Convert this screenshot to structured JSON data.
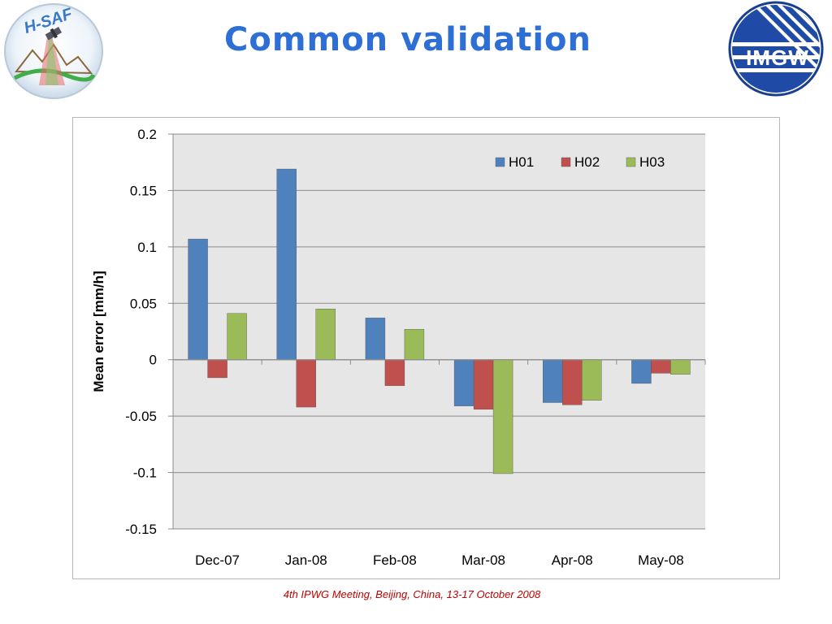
{
  "slide": {
    "title": "Common validation",
    "footer": "4th IPWG Meeting, Beijing, China, 13-17 October 2008",
    "logo_left_text": "H-SAF",
    "logo_right_text": "IMGW"
  },
  "colors": {
    "title": "#2d6fd4",
    "footer": "#c00000",
    "plot_background": "#e6e6e6"
  },
  "chart_data": {
    "type": "bar",
    "title": "",
    "xlabel": "",
    "ylabel": "Mean error [mm/h]",
    "categories": [
      "Dec-07",
      "Jan-08",
      "Feb-08",
      "Mar-08",
      "Apr-08",
      "May-08"
    ],
    "series": [
      {
        "name": "H01",
        "color": "#4f81bd",
        "values": [
          0.107,
          0.169,
          0.037,
          -0.041,
          -0.038,
          -0.021
        ]
      },
      {
        "name": "H02",
        "color": "#c0504d",
        "values": [
          -0.016,
          -0.042,
          -0.023,
          -0.044,
          -0.04,
          -0.012
        ]
      },
      {
        "name": "H03",
        "color": "#9bbb59",
        "values": [
          0.041,
          0.045,
          0.027,
          -0.101,
          -0.036,
          -0.013
        ]
      }
    ],
    "ylim": [
      -0.15,
      0.2
    ],
    "yticks": [
      0.2,
      0.15,
      0.1,
      0.05,
      0,
      -0.05,
      -0.1,
      -0.15
    ],
    "ytick_labels": [
      "0.2",
      "0.15",
      "0.1",
      "0.05",
      "0",
      "-0.05",
      "-0.1",
      "-0.15"
    ],
    "grid": true,
    "legend_position": "top-right"
  }
}
